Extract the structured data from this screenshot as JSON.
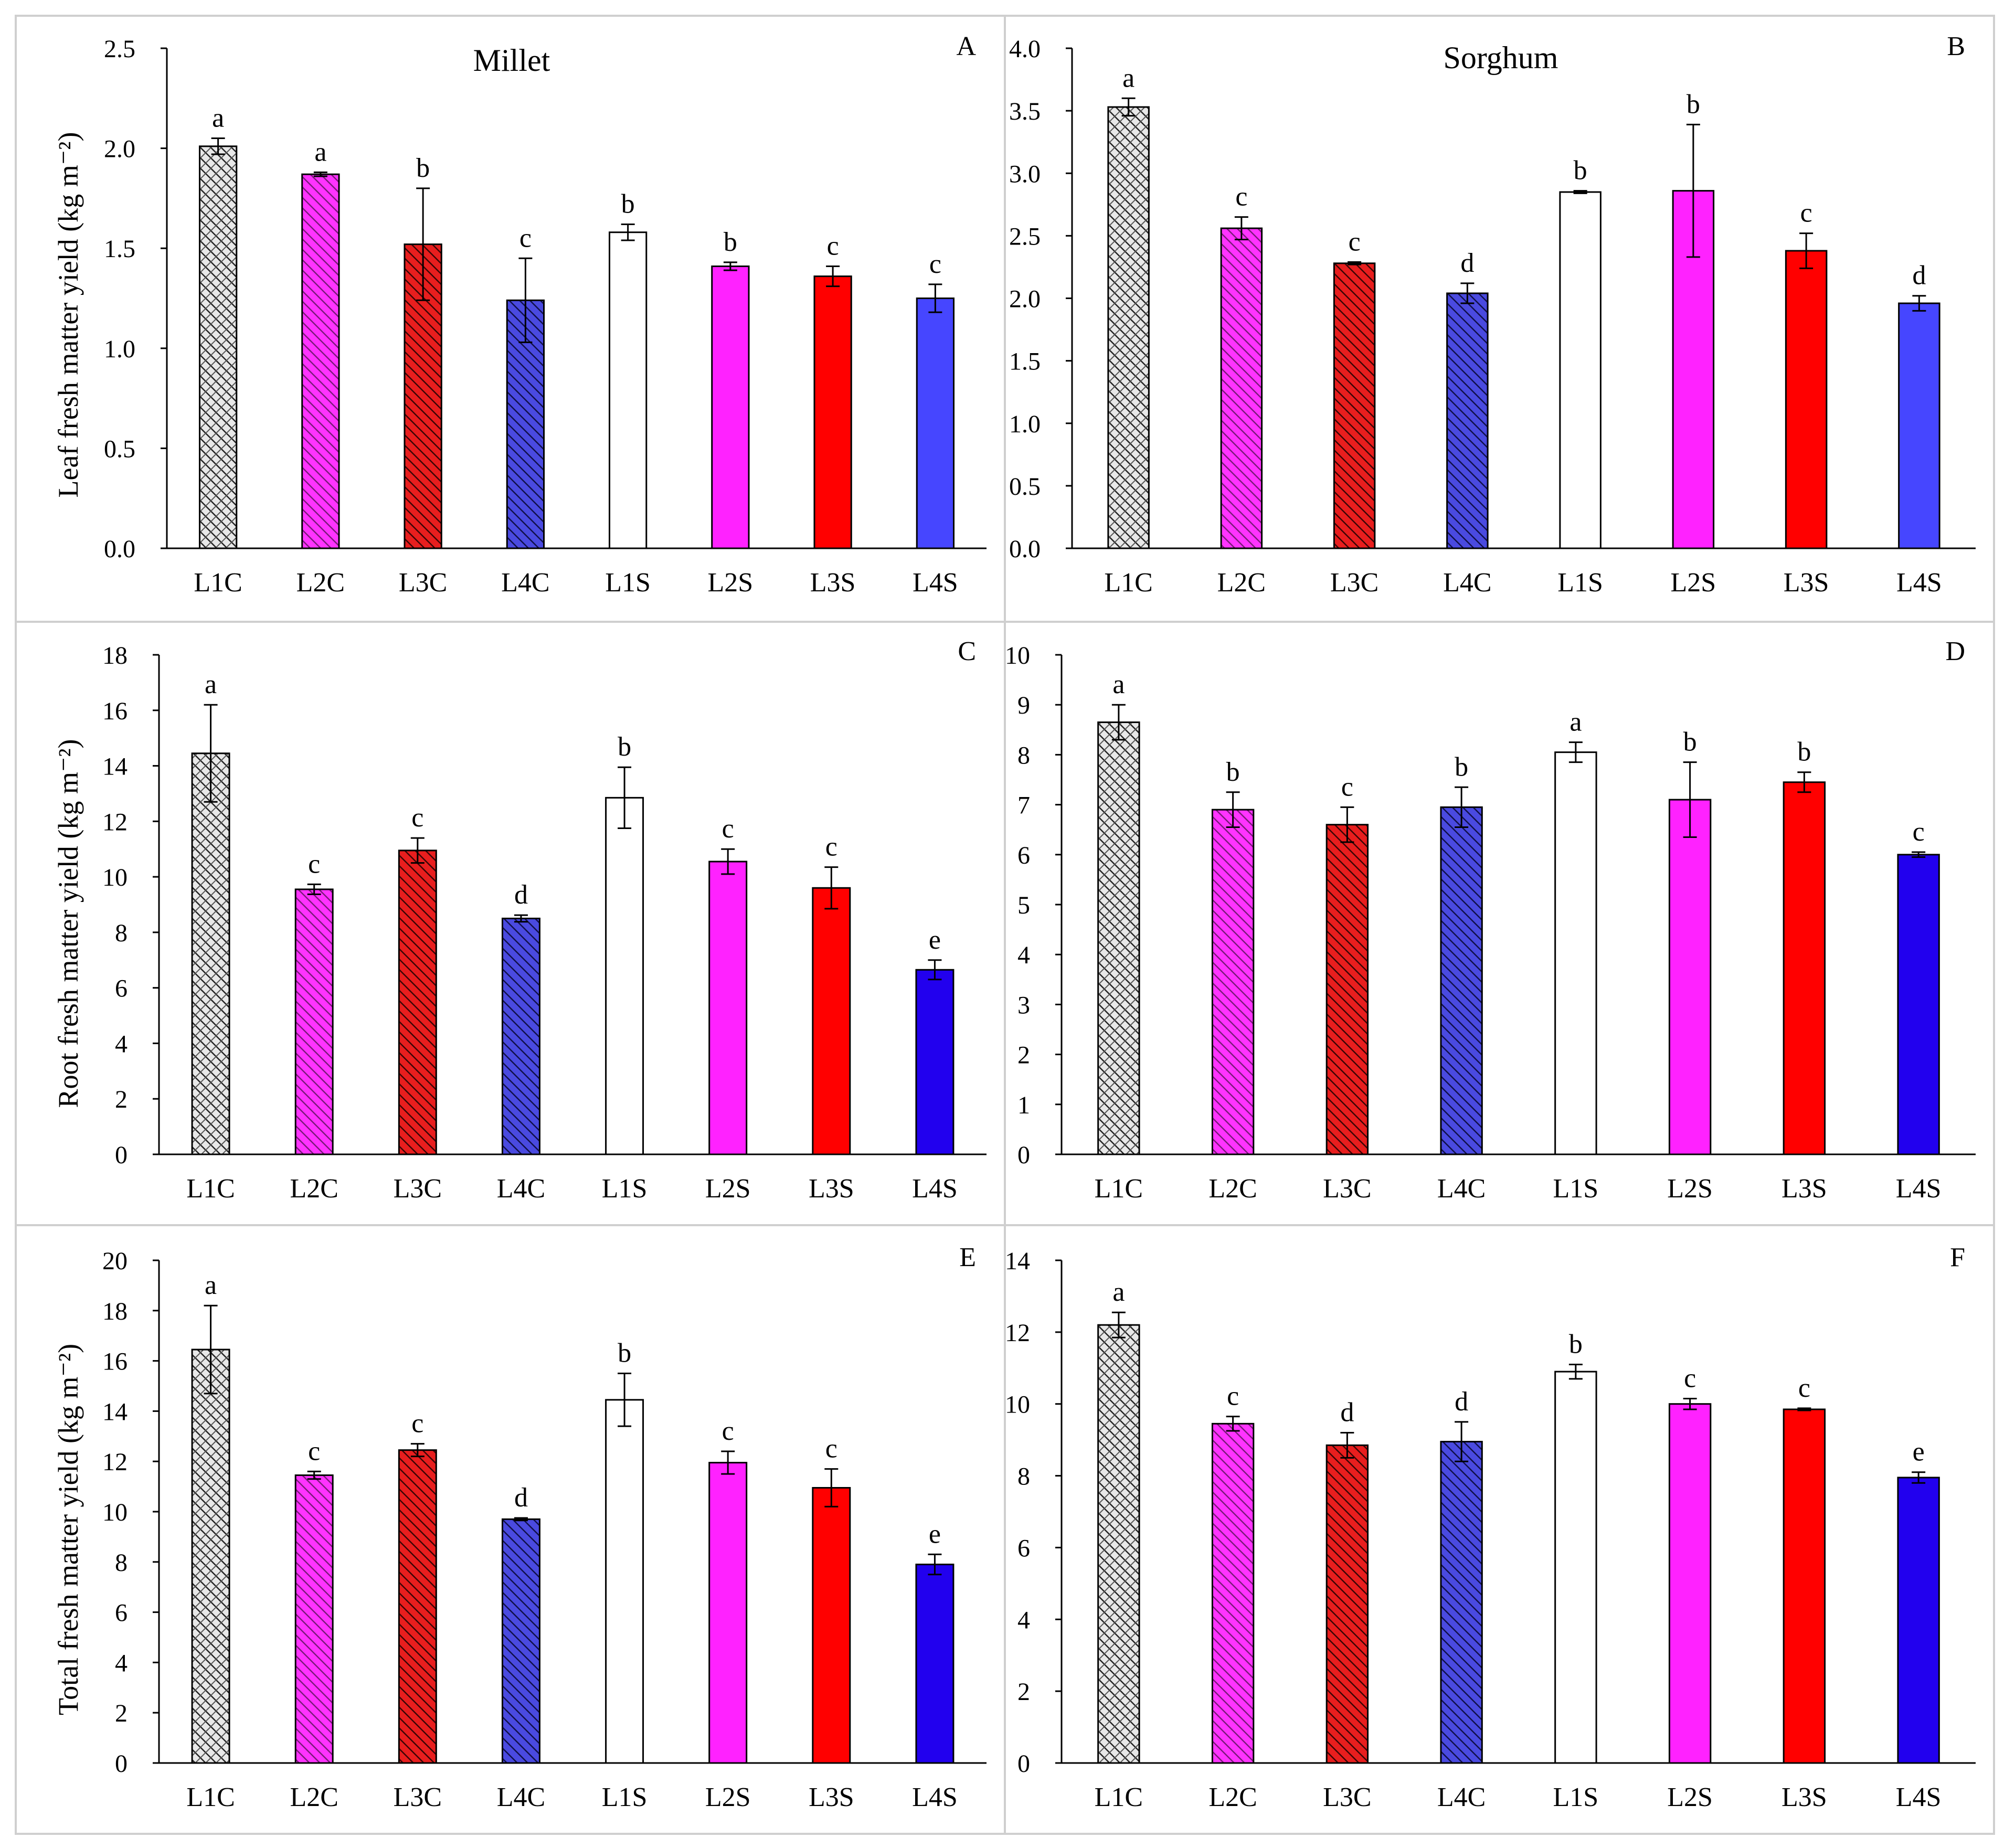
{
  "figure": {
    "ylabels": {
      "leaf": "Leaf fresh matter yield (kg m⁻²)",
      "root": "Root fresh matter yield (kg m⁻²)",
      "total": "Total fresh matter yield (kg m⁻²)"
    }
  },
  "chart_data": [
    {
      "id": "A",
      "type": "bar",
      "title": "Millet",
      "panel_label": "A",
      "ylabel": "Leaf fresh matter yield (kg m⁻²)",
      "ylim": [
        0,
        2.5
      ],
      "yticks": [
        0.0,
        0.5,
        1.0,
        1.5,
        2.0,
        2.5
      ],
      "tick_decimals": 1,
      "categories": [
        "L1C",
        "L2C",
        "L3C",
        "L4C",
        "L1S",
        "L2S",
        "L3S",
        "L4S"
      ],
      "values": [
        2.01,
        1.87,
        1.52,
        1.24,
        1.58,
        1.41,
        1.36,
        1.25
      ],
      "errors": [
        0.04,
        0.01,
        0.28,
        0.21,
        0.04,
        0.02,
        0.05,
        0.07
      ],
      "letters": [
        "a",
        "a",
        "b",
        "c",
        "b",
        "b",
        "c",
        "c"
      ]
    },
    {
      "id": "B",
      "type": "bar",
      "title": "Sorghum",
      "panel_label": "B",
      "ylabel": "",
      "ylim": [
        0,
        4.0
      ],
      "yticks": [
        0.0,
        0.5,
        1.0,
        1.5,
        2.0,
        2.5,
        3.0,
        3.5,
        4.0
      ],
      "tick_decimals": 1,
      "categories": [
        "L1C",
        "L2C",
        "L3C",
        "L4C",
        "L1S",
        "L2S",
        "L3S",
        "L4S"
      ],
      "values": [
        3.53,
        2.56,
        2.28,
        2.04,
        2.85,
        2.86,
        2.38,
        1.96
      ],
      "errors": [
        0.07,
        0.09,
        0.01,
        0.08,
        0.01,
        0.53,
        0.14,
        0.06
      ],
      "letters": [
        "a",
        "c",
        "c",
        "d",
        "b",
        "b",
        "c",
        "d"
      ]
    },
    {
      "id": "C",
      "type": "bar",
      "title": "",
      "panel_label": "C",
      "ylabel": "Root fresh matter yield (kg m⁻²)",
      "ylim": [
        0,
        18
      ],
      "yticks": [
        0,
        2,
        4,
        6,
        8,
        10,
        12,
        14,
        16,
        18
      ],
      "tick_decimals": 0,
      "categories": [
        "L1C",
        "L2C",
        "L3C",
        "L4C",
        "L1S",
        "L2S",
        "L3S",
        "L4S"
      ],
      "values": [
        14.45,
        9.55,
        10.95,
        8.5,
        12.85,
        10.55,
        9.6,
        6.65
      ],
      "errors": [
        1.75,
        0.18,
        0.45,
        0.12,
        1.1,
        0.45,
        0.75,
        0.35
      ],
      "letters": [
        "a",
        "c",
        "c",
        "d",
        "b",
        "c",
        "c",
        "e"
      ]
    },
    {
      "id": "D",
      "type": "bar",
      "title": "",
      "panel_label": "D",
      "ylabel": "",
      "ylim": [
        0,
        10
      ],
      "yticks": [
        0,
        1,
        2,
        3,
        4,
        5,
        6,
        7,
        8,
        9,
        10
      ],
      "tick_decimals": 0,
      "categories": [
        "L1C",
        "L2C",
        "L3C",
        "L4C",
        "L1S",
        "L2S",
        "L3S",
        "L4S"
      ],
      "values": [
        8.65,
        6.9,
        6.6,
        6.95,
        8.05,
        7.1,
        7.45,
        6.0
      ],
      "errors": [
        0.35,
        0.35,
        0.35,
        0.4,
        0.2,
        0.75,
        0.2,
        0.05
      ],
      "letters": [
        "a",
        "b",
        "c",
        "b",
        "a",
        "b",
        "b",
        "c"
      ]
    },
    {
      "id": "E",
      "type": "bar",
      "title": "",
      "panel_label": "E",
      "ylabel": "Total fresh matter yield (kg m⁻²)",
      "ylim": [
        0,
        20
      ],
      "yticks": [
        0,
        2,
        4,
        6,
        8,
        10,
        12,
        14,
        16,
        18,
        20
      ],
      "tick_decimals": 0,
      "categories": [
        "L1C",
        "L2C",
        "L3C",
        "L4C",
        "L1S",
        "L2S",
        "L3S",
        "L4S"
      ],
      "values": [
        16.45,
        11.45,
        12.45,
        9.7,
        14.45,
        11.95,
        10.95,
        7.9
      ],
      "errors": [
        1.75,
        0.15,
        0.25,
        0.05,
        1.05,
        0.45,
        0.75,
        0.4
      ],
      "letters": [
        "a",
        "c",
        "c",
        "d",
        "b",
        "c",
        "c",
        "e"
      ]
    },
    {
      "id": "F",
      "type": "bar",
      "title": "",
      "panel_label": "F",
      "ylabel": "",
      "ylim": [
        0,
        14
      ],
      "yticks": [
        0,
        2,
        4,
        6,
        8,
        10,
        12,
        14
      ],
      "tick_decimals": 0,
      "categories": [
        "L1C",
        "L2C",
        "L3C",
        "L4C",
        "L1S",
        "L2S",
        "L3S",
        "L4S"
      ],
      "values": [
        12.2,
        9.45,
        8.85,
        8.95,
        10.9,
        10.0,
        9.85,
        7.95
      ],
      "errors": [
        0.35,
        0.2,
        0.35,
        0.55,
        0.2,
        0.15,
        0.03,
        0.15
      ],
      "letters": [
        "a",
        "c",
        "d",
        "d",
        "b",
        "c",
        "c",
        "e"
      ]
    }
  ]
}
